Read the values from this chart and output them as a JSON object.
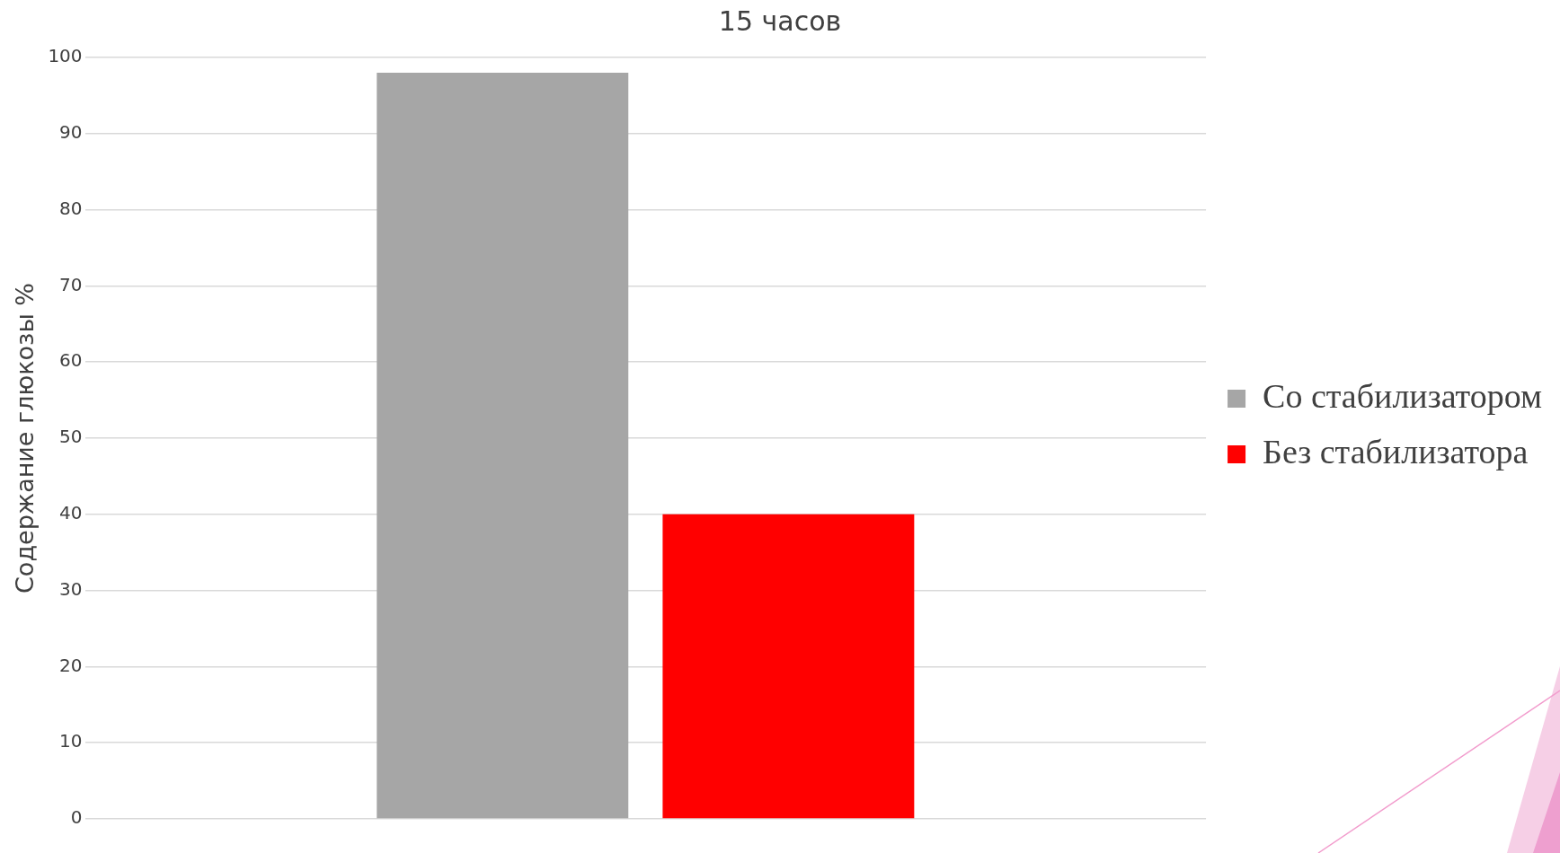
{
  "chart_data": {
    "type": "bar",
    "title": "15 часов",
    "ylabel": "Содержание глюкозы %",
    "categories": [
      null
    ],
    "series": [
      {
        "name": "Со стабилизатором",
        "color": "#a6a6a6",
        "values": [
          98
        ]
      },
      {
        "name": "Без стабилизатора",
        "color": "#ff0000",
        "values": [
          40
        ]
      }
    ],
    "ylim": [
      0,
      100
    ],
    "yticks": [
      0,
      10,
      20,
      30,
      40,
      50,
      60,
      70,
      80,
      90,
      100
    ],
    "grid": "y",
    "legend": "right"
  }
}
